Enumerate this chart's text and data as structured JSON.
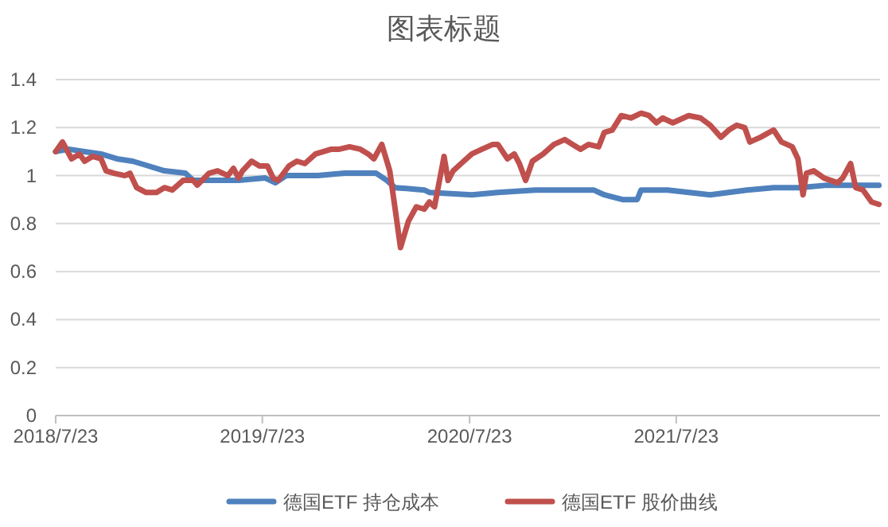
{
  "chart_data": {
    "type": "line",
    "title": "图表标题",
    "xlim": [
      "2018-07-23",
      "2022-07-18"
    ],
    "xticks": [
      {
        "value": "2018-07-23",
        "label": "2018/7/23"
      },
      {
        "value": "2019-07-23",
        "label": "2019/7/23"
      },
      {
        "value": "2020-07-23",
        "label": "2020/7/23"
      },
      {
        "value": "2021-07-23",
        "label": "2021/7/23"
      }
    ],
    "ylim": [
      0,
      1.4
    ],
    "yticks": [
      0,
      0.2,
      0.4,
      0.6,
      0.8,
      1,
      1.2,
      1.4
    ],
    "grid": "y",
    "legend": "bottom",
    "marker": "none",
    "line_style": "solid",
    "series": [
      {
        "name": "德国ETF 持仓成本",
        "color": "#4f81bd",
        "x": [
          "2018-07-23",
          "2018-08-15",
          "2018-09-12",
          "2018-10-11",
          "2018-11-08",
          "2018-12-06",
          "2019-01-03",
          "2019-01-31",
          "2019-03-09",
          "2019-03-23",
          "2019-04-25",
          "2019-06-11",
          "2019-07-28",
          "2019-08-15",
          "2019-09-03",
          "2019-10-29",
          "2019-12-15",
          "2020-02-09",
          "2020-02-28",
          "2020-03-13",
          "2020-05-04",
          "2020-05-13",
          "2020-07-27",
          "2020-09-11",
          "2020-11-16",
          "2021-02-27",
          "2021-03-18",
          "2021-04-19",
          "2021-05-15",
          "2021-05-22",
          "2021-07-08",
          "2021-09-21",
          "2021-11-25",
          "2022-01-11",
          "2022-02-27",
          "2022-04-15",
          "2022-07-16"
        ],
        "values": [
          1.1,
          1.11,
          1.1,
          1.09,
          1.07,
          1.06,
          1.04,
          1.02,
          1.01,
          0.98,
          0.98,
          0.98,
          0.99,
          0.97,
          1.0,
          1.0,
          1.01,
          1.01,
          0.98,
          0.95,
          0.94,
          0.93,
          0.92,
          0.93,
          0.94,
          0.94,
          0.92,
          0.9,
          0.9,
          0.94,
          0.94,
          0.92,
          0.94,
          0.95,
          0.95,
          0.96,
          0.96
        ]
      },
      {
        "name": "德国ETF 股价曲线",
        "color": "#c0504d",
        "x": [
          "2018-07-23",
          "2018-08-04",
          "2018-08-20",
          "2018-09-03",
          "2018-09-12",
          "2018-09-26",
          "2018-10-11",
          "2018-10-20",
          "2018-11-03",
          "2018-11-22",
          "2018-12-01",
          "2018-12-13",
          "2018-12-29",
          "2019-01-17",
          "2019-01-31",
          "2019-02-14",
          "2019-03-05",
          "2019-03-23",
          "2019-03-30",
          "2019-04-20",
          "2019-05-05",
          "2019-05-23",
          "2019-06-02",
          "2019-06-11",
          "2019-06-18",
          "2019-07-04",
          "2019-07-18",
          "2019-08-01",
          "2019-08-11",
          "2019-08-20",
          "2019-09-08",
          "2019-09-22",
          "2019-10-06",
          "2019-10-25",
          "2019-11-08",
          "2019-11-22",
          "2019-12-06",
          "2019-12-24",
          "2020-01-12",
          "2020-01-26",
          "2020-02-05",
          "2020-02-19",
          "2020-03-04",
          "2020-03-13",
          "2020-03-23",
          "2020-04-06",
          "2020-04-20",
          "2020-05-04",
          "2020-05-13",
          "2020-05-22",
          "2020-06-08",
          "2020-06-15",
          "2020-06-24",
          "2020-07-08",
          "2020-07-27",
          "2020-08-14",
          "2020-09-02",
          "2020-09-11",
          "2020-09-28",
          "2020-10-10",
          "2020-10-19",
          "2020-10-30",
          "2020-11-11",
          "2020-11-30",
          "2020-12-19",
          "2021-01-07",
          "2021-01-21",
          "2021-02-04",
          "2021-02-18",
          "2021-03-08",
          "2021-03-18",
          "2021-04-01",
          "2021-04-17",
          "2021-05-04",
          "2021-05-22",
          "2021-06-05",
          "2021-06-18",
          "2021-06-29",
          "2021-07-17",
          "2021-08-14",
          "2021-09-04",
          "2021-09-21",
          "2021-10-10",
          "2021-10-24",
          "2021-11-07",
          "2021-11-21",
          "2021-11-30",
          "2021-12-19",
          "2022-01-11",
          "2022-01-25",
          "2022-02-13",
          "2022-02-23",
          "2022-03-04",
          "2022-03-10",
          "2022-03-23",
          "2022-04-10",
          "2022-05-04",
          "2022-05-13",
          "2022-05-27",
          "2022-06-05",
          "2022-06-18",
          "2022-07-03",
          "2022-07-16"
        ],
        "values": [
          1.1,
          1.14,
          1.07,
          1.09,
          1.06,
          1.08,
          1.07,
          1.02,
          1.01,
          1.0,
          1.01,
          0.95,
          0.93,
          0.93,
          0.95,
          0.94,
          0.98,
          0.98,
          0.96,
          1.01,
          1.02,
          1.0,
          1.03,
          0.99,
          1.02,
          1.06,
          1.04,
          1.04,
          0.99,
          0.98,
          1.04,
          1.06,
          1.05,
          1.09,
          1.1,
          1.11,
          1.11,
          1.12,
          1.11,
          1.09,
          1.07,
          1.13,
          1.02,
          0.87,
          0.7,
          0.81,
          0.87,
          0.86,
          0.89,
          0.87,
          1.08,
          0.98,
          1.02,
          1.05,
          1.09,
          1.11,
          1.13,
          1.13,
          1.07,
          1.09,
          1.05,
          0.98,
          1.06,
          1.09,
          1.13,
          1.15,
          1.13,
          1.11,
          1.13,
          1.12,
          1.18,
          1.19,
          1.25,
          1.24,
          1.26,
          1.25,
          1.22,
          1.24,
          1.22,
          1.25,
          1.24,
          1.21,
          1.16,
          1.19,
          1.21,
          1.2,
          1.14,
          1.16,
          1.19,
          1.14,
          1.12,
          1.07,
          0.92,
          1.01,
          1.02,
          0.99,
          0.97,
          0.99,
          1.05,
          0.95,
          0.94,
          0.89,
          0.88
        ]
      }
    ]
  }
}
